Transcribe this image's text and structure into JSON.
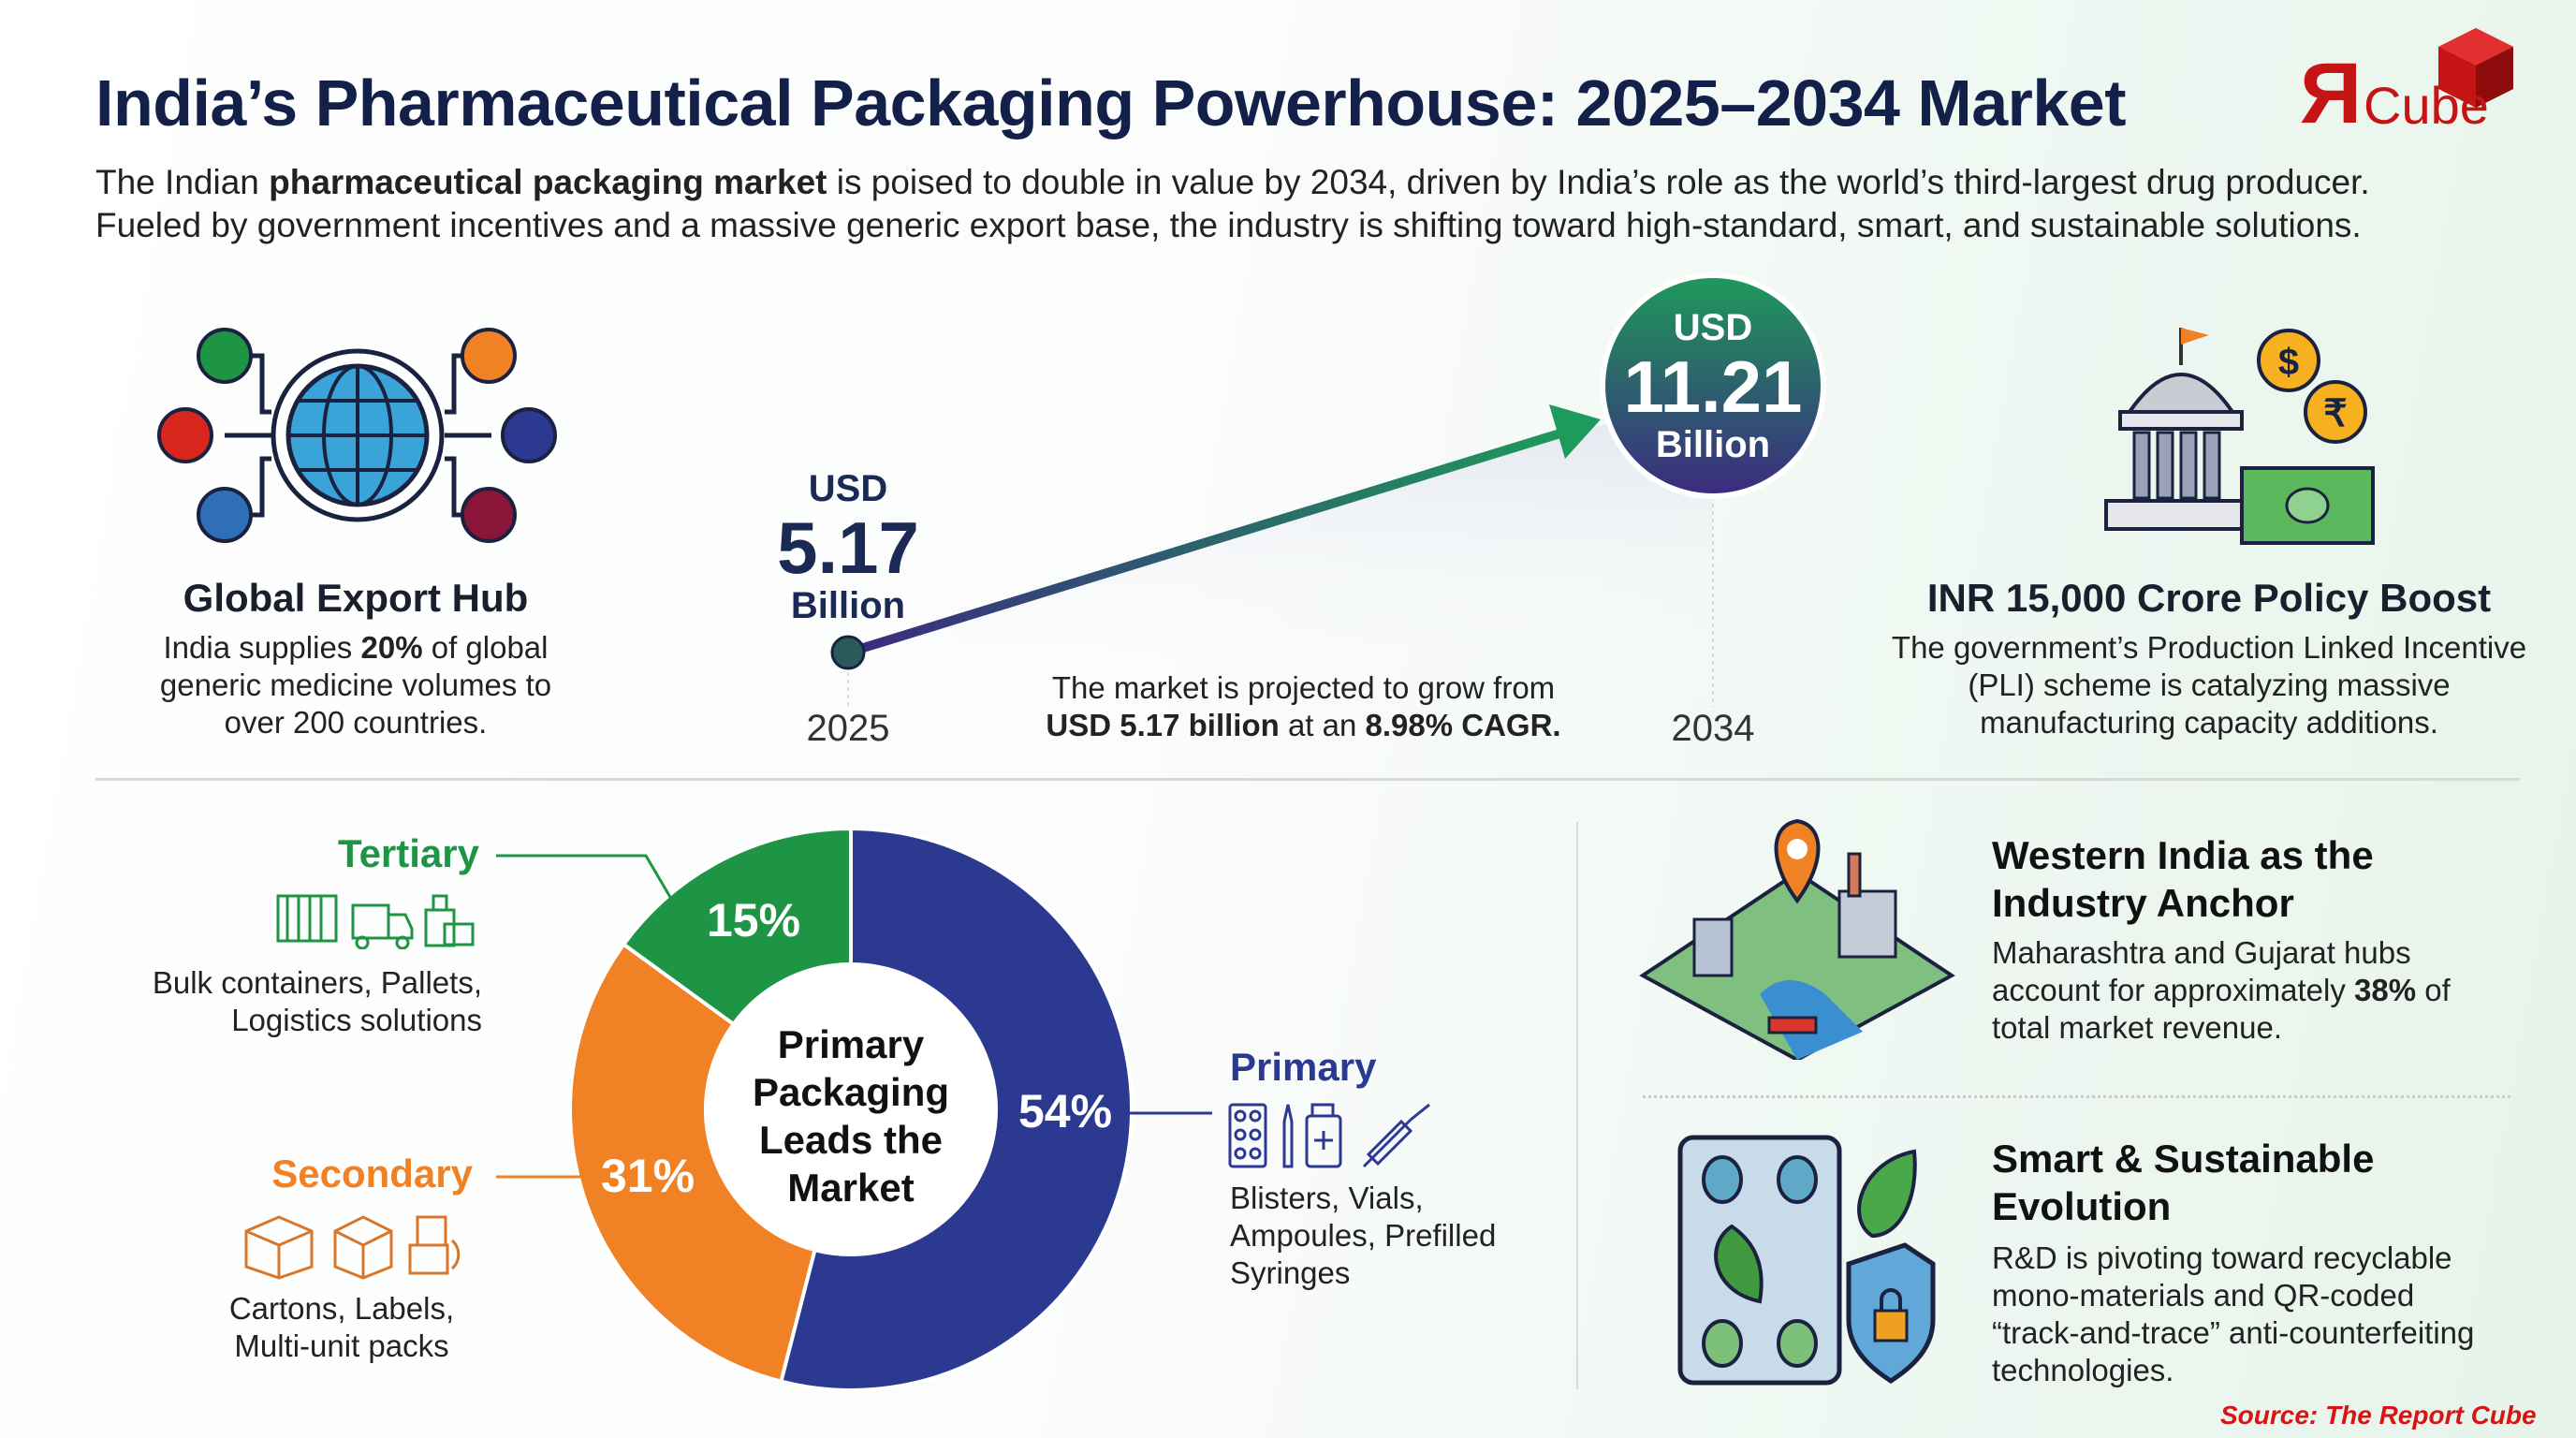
{
  "header": {
    "title": "India’s Pharmaceutical Packaging Powerhouse: 2025–2034 Market",
    "intro_pre": "The Indian ",
    "intro_bold": "pharmaceutical packaging market",
    "intro_post": " is poised to double in value by 2034, driven by India’s role as the world’s third-largest drug producer.",
    "intro_line2": "Fueled by government incentives and a massive generic export base, the industry is shifting toward high-standard, smart, and sustainable solutions.",
    "logo_text": "Cube",
    "logo_mark": "Я"
  },
  "export_hub": {
    "icon": "globe-network-flags-icon",
    "title": "Global Export Hub",
    "text_pre": "India supplies ",
    "text_bold": "20%",
    "text_post": " of global generic medicine volumes to over 200 countries."
  },
  "growth": {
    "start_currency": "USD",
    "start_value": "5.17",
    "start_unit": "Billion",
    "start_year": "2025",
    "end_currency": "USD",
    "end_value": "11.21",
    "end_unit": "Billion",
    "end_year": "2034",
    "caption_line1": "The market is projected to grow from",
    "caption_bold1": "USD 5.17 billion",
    "caption_mid": " at an ",
    "caption_bold2": "8.98% CAGR."
  },
  "policy": {
    "icon": "government-building-money-icon",
    "title": "INR 15,000 Crore Policy Boost",
    "text": "The government’s Production Linked Incentive (PLI) scheme is catalyzing massive manufacturing capacity additions."
  },
  "chart_data": {
    "type": "pie",
    "center_label": "Primary Packaging Leads the Market",
    "categories": [
      "Primary",
      "Secondary",
      "Tertiary"
    ],
    "values": [
      54,
      31,
      15
    ],
    "colors": [
      "#2b3990",
      "#f08225",
      "#1e9445"
    ],
    "labels": [
      "54%",
      "31%",
      "15%"
    ]
  },
  "segments": {
    "tertiary": {
      "label": "Tertiary",
      "desc": "Bulk containers, Pallets, Logistics solutions",
      "color": "#1e9445"
    },
    "secondary": {
      "label": "Secondary",
      "desc": "Cartons, Labels, Multi-unit packs",
      "color": "#f08225"
    },
    "primary": {
      "label": "Primary",
      "desc": "Blisters, Vials, Ampoules, Prefilled Syringes",
      "color": "#2b3990"
    }
  },
  "western": {
    "icon": "industrial-map-pin-icon",
    "title": "Western India as the Industry Anchor",
    "text_pre": "Maharashtra and Gujarat hubs account for approximately ",
    "text_bold": "38%",
    "text_post": " of total market revenue."
  },
  "smart": {
    "icon": "blister-leaf-shield-lock-icon",
    "title": "Smart & Sustainable Evolution",
    "text": "R&D is pivoting toward recyclable mono-materials and QR-coded “track-and-trace” anti-counterfeiting technologies."
  },
  "source": "Source: The Report Cube"
}
